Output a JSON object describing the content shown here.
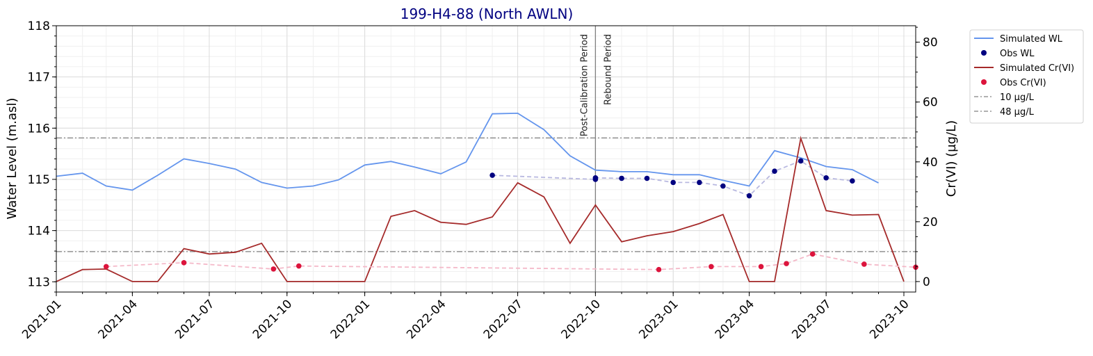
{
  "chart_data": {
    "type": "line",
    "title": "199-H4-88 (North AWLN)",
    "title_color": "#000080",
    "ylabel_left": "Water Level (m.asl)",
    "ylabel_right": "Cr(VI) (µg/L)",
    "xlabel": "",
    "x_ticks": [
      "2021-01",
      "2021-04",
      "2021-07",
      "2021-10",
      "2022-01",
      "2022-04",
      "2022-07",
      "2022-10",
      "2023-01",
      "2023-04",
      "2023-07",
      "2023-10"
    ],
    "xlim": [
      "2021-01-01",
      "2023-10-15"
    ],
    "ylim_left": [
      112.8,
      118
    ],
    "y_ticks_left": [
      113,
      114,
      115,
      116,
      117,
      118
    ],
    "ylim_right": [
      -3.5,
      85.5
    ],
    "y_ticks_right": [
      0,
      20,
      40,
      60,
      80
    ],
    "grid": true,
    "legend_position": "outside-top-right",
    "annotations": [
      {
        "text": "Post-Calibration Period",
        "date": "2022-10-01"
      },
      {
        "text": "Rebound Period",
        "date": "2022-10-01"
      }
    ],
    "series": [
      {
        "name": "Simulated WL",
        "axis": "left",
        "kind": "line",
        "color": "#6495ED",
        "points": [
          [
            "2021-01-01",
            115.06
          ],
          [
            "2021-02-01",
            115.12
          ],
          [
            "2021-03-01",
            114.87
          ],
          [
            "2021-04-01",
            114.79
          ],
          [
            "2021-05-01",
            115.08
          ],
          [
            "2021-06-01",
            115.4
          ],
          [
            "2021-07-01",
            115.31
          ],
          [
            "2021-08-01",
            115.2
          ],
          [
            "2021-09-01",
            114.94
          ],
          [
            "2021-10-01",
            114.83
          ],
          [
            "2021-11-01",
            114.87
          ],
          [
            "2021-12-01",
            114.99
          ],
          [
            "2022-01-01",
            115.28
          ],
          [
            "2022-02-01",
            115.35
          ],
          [
            "2022-03-01",
            115.24
          ],
          [
            "2022-04-01",
            115.11
          ],
          [
            "2022-05-01",
            115.34
          ],
          [
            "2022-06-01",
            116.28
          ],
          [
            "2022-07-01",
            116.29
          ],
          [
            "2022-08-01",
            115.97
          ],
          [
            "2022-09-01",
            115.46
          ],
          [
            "2022-10-01",
            115.18
          ],
          [
            "2022-11-01",
            115.15
          ],
          [
            "2022-12-01",
            115.15
          ],
          [
            "2023-01-01",
            115.09
          ],
          [
            "2023-02-01",
            115.09
          ],
          [
            "2023-03-01",
            114.98
          ],
          [
            "2023-04-01",
            114.87
          ],
          [
            "2023-05-01",
            115.56
          ],
          [
            "2023-06-01",
            115.42
          ],
          [
            "2023-07-01",
            115.25
          ],
          [
            "2023-08-01",
            115.19
          ],
          [
            "2023-09-01",
            114.93
          ]
        ]
      },
      {
        "name": "Obs WL",
        "axis": "left",
        "kind": "points",
        "color": "#000080",
        "trend_color": "#B8B8E0",
        "points": [
          [
            "2022-06-01",
            115.08
          ],
          [
            "2022-10-01",
            115.0
          ],
          [
            "2022-10-01",
            115.03
          ],
          [
            "2022-11-01",
            115.02
          ],
          [
            "2022-12-01",
            115.02
          ],
          [
            "2023-01-01",
            114.94
          ],
          [
            "2023-02-01",
            114.94
          ],
          [
            "2023-03-01",
            114.87
          ],
          [
            "2023-04-01",
            114.68
          ],
          [
            "2023-05-01",
            115.16
          ],
          [
            "2023-06-01",
            115.36
          ],
          [
            "2023-07-01",
            115.03
          ],
          [
            "2023-08-01",
            114.97
          ]
        ]
      },
      {
        "name": "Simulated Cr(VI)",
        "axis": "right",
        "kind": "line",
        "color": "#A52A2A",
        "points": [
          [
            "2021-01-01",
            0
          ],
          [
            "2021-02-01",
            4
          ],
          [
            "2021-03-01",
            4.2
          ],
          [
            "2021-04-01",
            0
          ],
          [
            "2021-05-01",
            0
          ],
          [
            "2021-06-01",
            11
          ],
          [
            "2021-07-01",
            9.2
          ],
          [
            "2021-08-01",
            9.8
          ],
          [
            "2021-09-01",
            12.8
          ],
          [
            "2021-10-01",
            0
          ],
          [
            "2021-11-01",
            0
          ],
          [
            "2021-12-01",
            0
          ],
          [
            "2022-01-01",
            0
          ],
          [
            "2022-02-01",
            21.8
          ],
          [
            "2022-03-01",
            23.7
          ],
          [
            "2022-04-01",
            19.8
          ],
          [
            "2022-05-01",
            19.1
          ],
          [
            "2022-06-01",
            21.6
          ],
          [
            "2022-07-01",
            33
          ],
          [
            "2022-08-01",
            28.3
          ],
          [
            "2022-09-01",
            12.8
          ],
          [
            "2022-10-01",
            25.6
          ],
          [
            "2022-11-01",
            13.3
          ],
          [
            "2022-12-01",
            15.3
          ],
          [
            "2023-01-01",
            16.7
          ],
          [
            "2023-02-01",
            19.4
          ],
          [
            "2023-03-01",
            22.4
          ],
          [
            "2023-04-01",
            0
          ],
          [
            "2023-05-01",
            0
          ],
          [
            "2023-06-01",
            47.9
          ],
          [
            "2023-07-01",
            23.7
          ],
          [
            "2023-08-01",
            22.2
          ],
          [
            "2023-09-01",
            22.4
          ],
          [
            "2023-10-01",
            0
          ]
        ]
      },
      {
        "name": "Obs Cr(VI)",
        "axis": "right",
        "kind": "points",
        "color": "#DC143C",
        "trend_color": "#F4B8C8",
        "points": [
          [
            "2021-03-01",
            5
          ],
          [
            "2021-06-01",
            6.3
          ],
          [
            "2021-09-15",
            4.2
          ],
          [
            "2021-10-15",
            5.2
          ],
          [
            "2022-12-15",
            4
          ],
          [
            "2023-02-15",
            5
          ],
          [
            "2023-04-15",
            5
          ],
          [
            "2023-05-15",
            6
          ],
          [
            "2023-06-15",
            9.2
          ],
          [
            "2023-08-15",
            5.8
          ],
          [
            "2023-10-15",
            4.8
          ]
        ]
      },
      {
        "name": "10 µg/L",
        "axis": "right",
        "kind": "hline",
        "value": 10,
        "color": "#808080"
      },
      {
        "name": "48 µg/L",
        "axis": "right",
        "kind": "hline",
        "value": 48,
        "color": "#808080"
      }
    ]
  }
}
